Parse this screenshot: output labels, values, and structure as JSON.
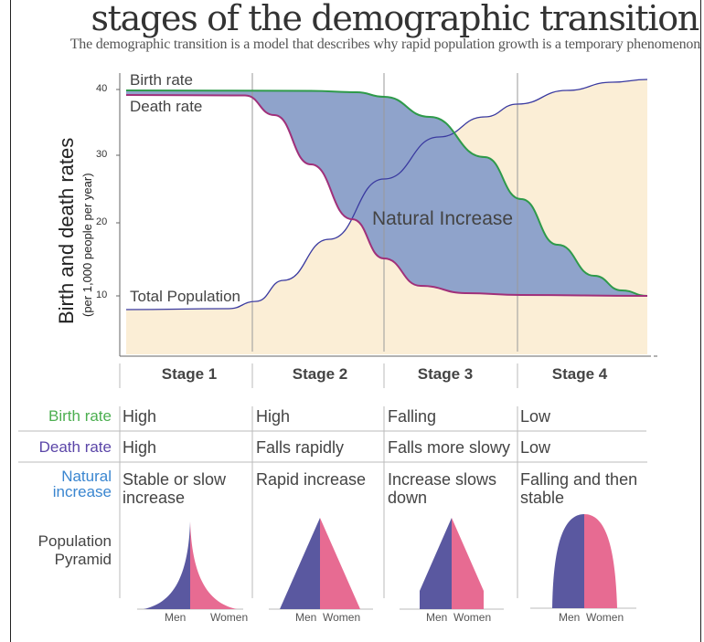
{
  "title": "stages of the demographic transition",
  "subtitle": "The demographic transition is a model that describes why rapid population growth is a temporary phenomenon",
  "chart": {
    "ylabel": "Birth and death rates",
    "ylabel_sub": "(per 1,000 people per year)",
    "yticks": [
      "40",
      "30",
      "20",
      "10"
    ],
    "labels": {
      "birth": "Birth rate",
      "death": "Death rate",
      "population": "Total Population",
      "natural": "Natural Increase"
    },
    "colors": {
      "birth": "#2e9a4a",
      "death": "#a0307a",
      "population": "#3a3aa0",
      "natural_fill": "#8fa3cb",
      "population_fill": "#fbeed6"
    }
  },
  "stages": [
    "Stage 1",
    "Stage 2",
    "Stage 3",
    "Stage 4"
  ],
  "rows": {
    "birth": {
      "label": "Birth rate",
      "color": "#4caf50",
      "values": [
        "High",
        "High",
        "Falling",
        "Low"
      ]
    },
    "death": {
      "label": "Death rate",
      "color": "#5b46a8",
      "values": [
        "High",
        "Falls rapidly",
        "Falls more slowy",
        "Low"
      ]
    },
    "natural": {
      "label_1": "Natural",
      "label_2": "increase",
      "color": "#3a86d0",
      "values": [
        [
          "Stable or slow",
          "increase"
        ],
        [
          "Rapid increase",
          ""
        ],
        [
          "Increase slows",
          "down"
        ],
        [
          "Falling and then",
          "stable"
        ]
      ]
    },
    "pyramid": {
      "label_1": "Population",
      "label_2": "Pyramid",
      "men": "Men",
      "women": "Women",
      "men_color": "#5a58a0",
      "women_color": "#e76b92"
    }
  }
}
